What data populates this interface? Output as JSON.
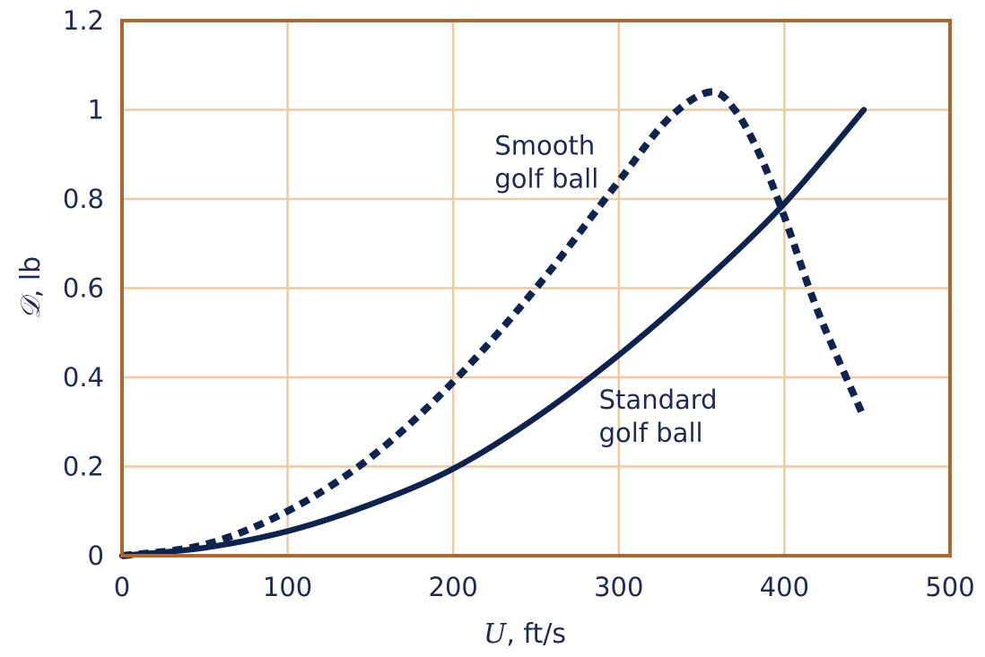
{
  "chart_data": {
    "type": "line",
    "title": "",
    "xlabel": {
      "symbol": "U",
      "unit": ", ft/s"
    },
    "ylabel": {
      "symbol": "𝒟",
      "unit": ", lb"
    },
    "xlim": [
      0,
      500
    ],
    "ylim": [
      0,
      1.2
    ],
    "xticks": [
      "0",
      "100",
      "200",
      "300",
      "400",
      "500"
    ],
    "yticks": [
      "0",
      "0.2",
      "0.4",
      "0.6",
      "0.8",
      "1",
      "1.2"
    ],
    "grid": true,
    "series": [
      {
        "name": "Smooth golf ball",
        "style": "dashed",
        "x": [
          0,
          50,
          100,
          150,
          200,
          250,
          300,
          330,
          355,
          370,
          385,
          400,
          420,
          448
        ],
        "y": [
          0,
          0.025,
          0.1,
          0.22,
          0.39,
          0.6,
          0.84,
          0.98,
          1.04,
          1.0,
          0.9,
          0.76,
          0.55,
          0.31
        ]
      },
      {
        "name": "Standard golf ball",
        "style": "solid",
        "x": [
          0,
          50,
          100,
          150,
          200,
          250,
          300,
          350,
          400,
          448
        ],
        "y": [
          0,
          0.018,
          0.055,
          0.115,
          0.195,
          0.31,
          0.45,
          0.61,
          0.79,
          1.0
        ]
      }
    ],
    "annotations": [
      {
        "lines": [
          "Smooth",
          "golf ball"
        ],
        "series": "Smooth golf ball",
        "at": [
          225,
          0.9
        ]
      },
      {
        "lines": [
          "Standard",
          "golf ball"
        ],
        "series": "Standard golf ball",
        "at": [
          288,
          0.33
        ]
      }
    ],
    "colors": {
      "frame": "#b0662a",
      "grid": "#efc9a1",
      "series": "#0f2350",
      "text": "#1d2a55"
    }
  }
}
